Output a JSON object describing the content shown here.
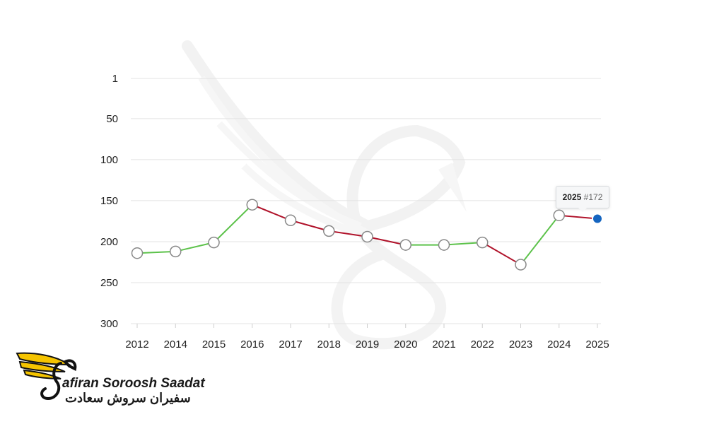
{
  "chart_data": {
    "type": "line",
    "x": [
      "2012",
      "2014",
      "2015",
      "2016",
      "2017",
      "2018",
      "2019",
      "2020",
      "2021",
      "2022",
      "2023",
      "2024",
      "2025"
    ],
    "values": [
      214,
      212,
      201,
      155,
      174,
      187,
      194,
      204,
      204,
      201,
      228,
      168,
      172
    ],
    "ylim": [
      300,
      1
    ],
    "yticks": [
      1,
      50,
      100,
      150,
      200,
      250,
      300
    ],
    "y_inverted": true,
    "grid": "horizontal",
    "colors": {
      "improving": "#5cc24a",
      "declining": "#b0122a",
      "highlight": "#1565c0",
      "marker_fill": "#ffffff",
      "marker_stroke": "#888888"
    },
    "highlight": {
      "year": "2025",
      "label": "#172"
    }
  },
  "tooltip": {
    "year": "2025",
    "rank": "#172"
  },
  "brand": {
    "name_en": "afiran Soroosh Saadat",
    "name_fa": "سفیران سروش سعادت",
    "logo_colors": {
      "wing": "#f5c400",
      "stroke": "#111111"
    }
  }
}
